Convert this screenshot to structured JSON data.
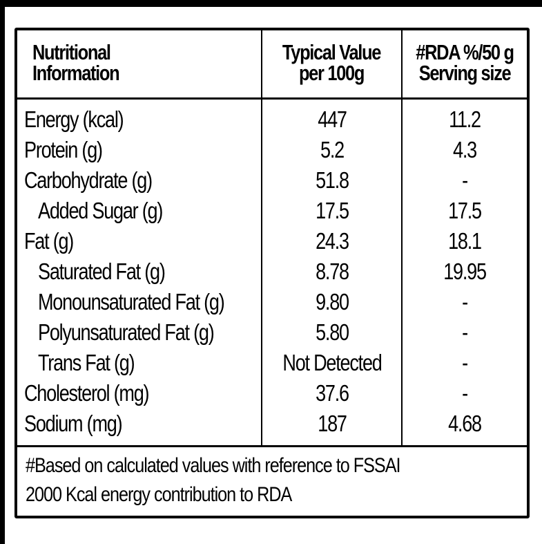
{
  "table": {
    "headers": {
      "col1_line1": "Nutritional",
      "col1_line2": "Information",
      "col2_line1": "Typical Value",
      "col2_line2": "per 100g",
      "col3_line1": "#RDA %/50 g",
      "col3_line2": "Serving size"
    },
    "rows": [
      {
        "name": "Energy (kcal)",
        "value": "447",
        "rda": "11.2",
        "indent": false
      },
      {
        "name": "Protein (g)",
        "value": "5.2",
        "rda": "4.3",
        "indent": false
      },
      {
        "name": "Carbohydrate (g)",
        "value": "51.8",
        "rda": "-",
        "indent": false
      },
      {
        "name": "Added Sugar (g)",
        "value": "17.5",
        "rda": "17.5",
        "indent": true
      },
      {
        "name": "Fat (g)",
        "value": "24.3",
        "rda": "18.1",
        "indent": false
      },
      {
        "name": "Saturated Fat (g)",
        "value": "8.78",
        "rda": "19.95",
        "indent": true
      },
      {
        "name": "Monounsaturated Fat (g)",
        "value": "9.80",
        "rda": "-",
        "indent": true
      },
      {
        "name": "Polyunsaturated Fat (g)",
        "value": "5.80",
        "rda": "-",
        "indent": true
      },
      {
        "name": "Trans Fat (g)",
        "value": "Not Detected",
        "rda": "-",
        "indent": true
      },
      {
        "name": "Cholesterol (mg)",
        "value": "37.6",
        "rda": "-",
        "indent": false
      },
      {
        "name": "Sodium (mg)",
        "value": "187",
        "rda": "4.68",
        "indent": false
      }
    ]
  },
  "footnote": {
    "line1": "#Based on calculated values with reference to FSSAI",
    "line2": "2000 Kcal energy contribution to RDA"
  },
  "colors": {
    "background": "#000000",
    "label": "#ffffff",
    "ink": "#000000"
  }
}
